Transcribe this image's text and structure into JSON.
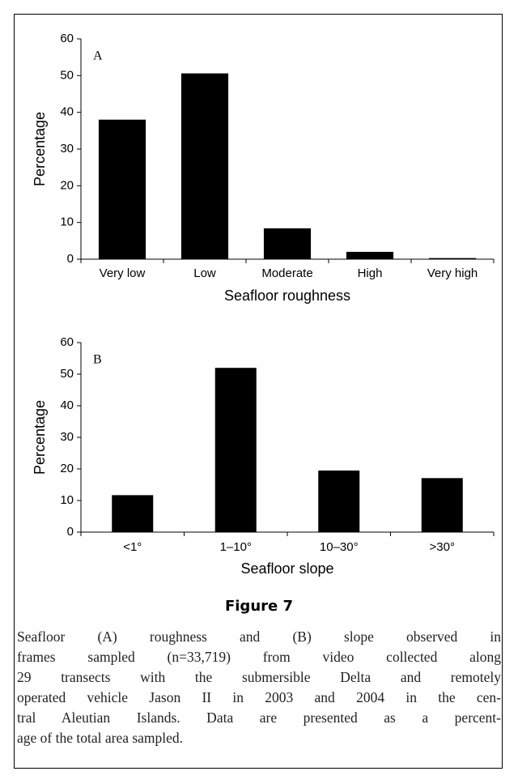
{
  "chart_data": [
    {
      "type": "bar",
      "panel": "A",
      "xlabel": "Seafloor roughness",
      "ylabel": "Percentage",
      "categories": [
        "Very low",
        "Low",
        "Moderate",
        "High",
        "Very high"
      ],
      "values": [
        38,
        50.6,
        8.4,
        2,
        0.3
      ],
      "color": "#000000",
      "ylim": [
        0,
        60
      ],
      "yticks": [
        0,
        10,
        20,
        30,
        40,
        50,
        60
      ]
    },
    {
      "type": "bar",
      "panel": "B",
      "xlabel": "Seafloor slope",
      "ylabel": "Percentage",
      "categories": [
        "<1°",
        "1–10°",
        "10–30°",
        ">30°"
      ],
      "values": [
        11.7,
        52,
        19.5,
        17.1
      ],
      "color": "#000000",
      "ylim": [
        0,
        60
      ],
      "yticks": [
        0,
        10,
        20,
        30,
        40,
        50,
        60
      ]
    }
  ],
  "figure": {
    "title": "Figure 7",
    "caption_lines": [
      "Seafloor (A) roughness and (B) slope observed in",
      "frames sampled (n=33,719) from video collected along",
      "29 transects with the submersible Delta and remotely",
      "operated vehicle Jason II in 2003 and 2004 in the cen-",
      "tral Aleutian Islands. Data are presented as a percent-",
      "age of the total area sampled."
    ]
  }
}
